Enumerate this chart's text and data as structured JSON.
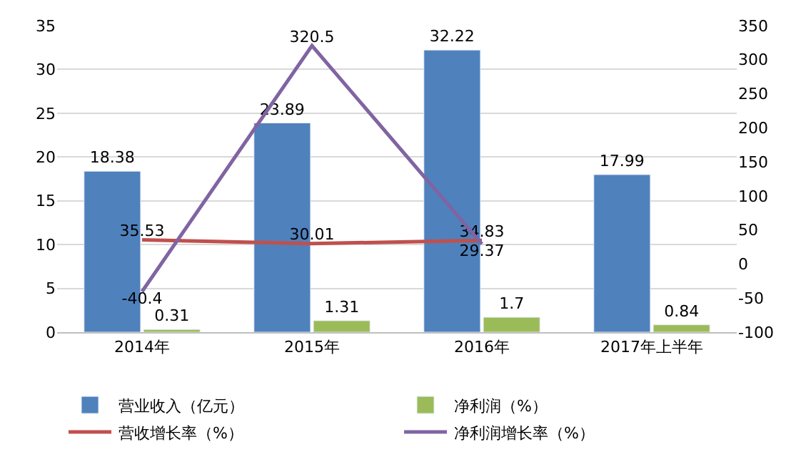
{
  "chart_data": {
    "type": "bar",
    "categories": [
      "2014年",
      "2015年",
      "2016年",
      "2017年上半年"
    ],
    "series": [
      {
        "name": "营业收入（亿元）",
        "color": "#4f81bd",
        "values": [
          18.38,
          23.89,
          32.22,
          17.99
        ]
      },
      {
        "name": "净利润（%）",
        "color": "#9bbb59",
        "values": [
          0.31,
          1.31,
          1.7,
          0.84
        ]
      },
      {
        "name": "营收增长率（%）",
        "type": "line",
        "axis": "y2",
        "color": "#c0504d",
        "values": [
          35.53,
          30.01,
          34.83,
          null
        ]
      },
      {
        "name": "净利润增长率（%）",
        "type": "line",
        "axis": "y2",
        "color": "#8064a2",
        "values": [
          -40.4,
          320.5,
          29.37,
          null
        ]
      }
    ],
    "ylim": [
      0,
      35
    ],
    "yticks": [
      0,
      5,
      10,
      15,
      20,
      25,
      30,
      35
    ],
    "y2lim": [
      -100,
      350
    ],
    "y2ticks": [
      -100,
      -50,
      0,
      50,
      100,
      150,
      200,
      250,
      300,
      350
    ],
    "grid": "y",
    "legend": "bottom",
    "data_labels": true,
    "marker": "none",
    "line_style": "solid"
  }
}
